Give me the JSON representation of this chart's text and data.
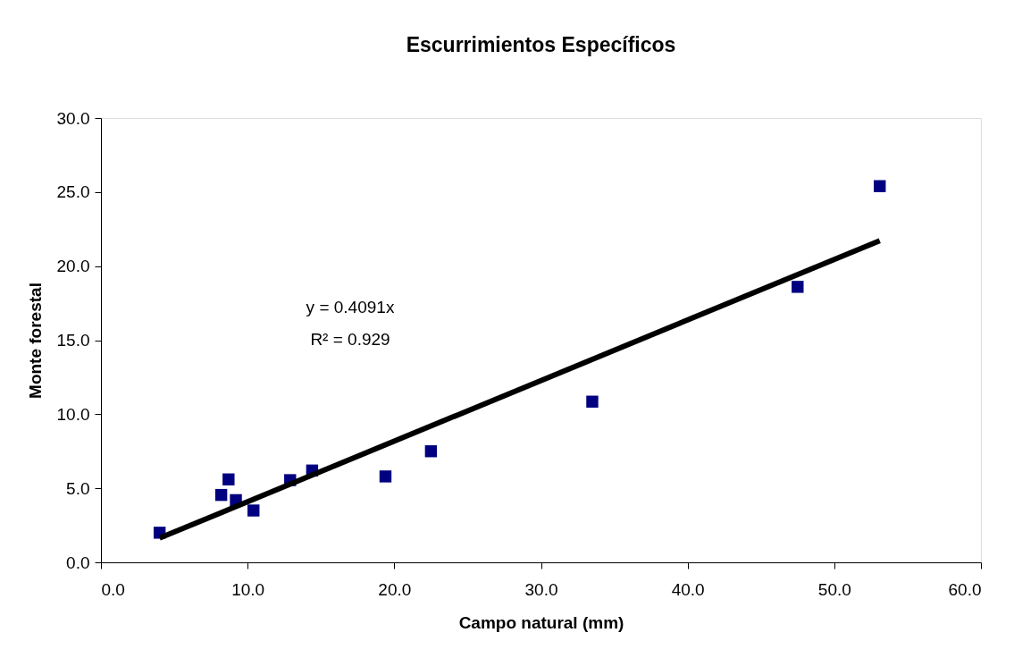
{
  "chart_data": {
    "type": "scatter",
    "title": "Escurrimientos Específicos",
    "xlabel": "Campo natural (mm)",
    "ylabel": "Monte forestal",
    "xlim": [
      0,
      60
    ],
    "ylim": [
      0,
      30
    ],
    "xticks": [
      {
        "value": 0,
        "label": "0.0"
      },
      {
        "value": 10,
        "label": "10.0"
      },
      {
        "value": 20,
        "label": "20.0"
      },
      {
        "value": 30,
        "label": "30.0"
      },
      {
        "value": 40,
        "label": "40.0"
      },
      {
        "value": 50,
        "label": "50.0"
      },
      {
        "value": 60,
        "label": "60.0"
      }
    ],
    "yticks": [
      {
        "value": 0,
        "label": "0.0"
      },
      {
        "value": 5,
        "label": "5.0"
      },
      {
        "value": 10,
        "label": "10.0"
      },
      {
        "value": 15,
        "label": "15.0"
      },
      {
        "value": 20,
        "label": "20.0"
      },
      {
        "value": 25,
        "label": "25.0"
      },
      {
        "value": 30,
        "label": "30.0"
      }
    ],
    "grid": false,
    "series": [
      {
        "color": "#000080",
        "marker": "square",
        "x": [
          4.0,
          8.2,
          8.7,
          9.2,
          10.4,
          12.9,
          14.4,
          19.4,
          22.5,
          33.5,
          47.5,
          53.1
        ],
        "values": [
          2.0,
          4.55,
          5.6,
          4.2,
          3.5,
          5.55,
          6.2,
          5.8,
          7.5,
          10.85,
          18.6,
          25.4
        ]
      },
      {
        "type": "line",
        "color": "#000000",
        "line_style": "solid",
        "x": [
          4.0,
          53.1
        ],
        "values": [
          1.64,
          21.72
        ]
      }
    ],
    "annotations": [
      "y = 0.4091x",
      "R² = 0.929"
    ]
  }
}
